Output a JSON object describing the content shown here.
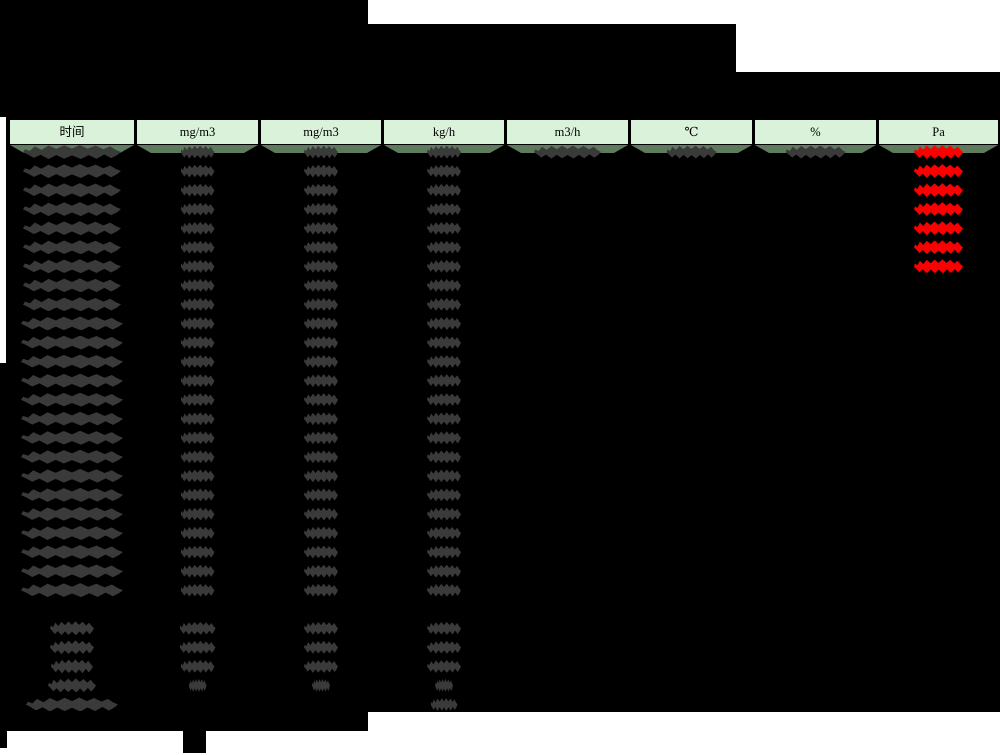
{
  "colors": {
    "canvas_bg": "#ffffff",
    "page_bg": "#000000",
    "header_cell_bg": "#d9f2d9",
    "header_strip_bg": "#5e7b5e",
    "header_text": "#000000",
    "blob": "#3a3a3a",
    "blob_red": "#fb0000"
  },
  "header": {
    "labels": [
      "时间",
      "mg/m3",
      "mg/m3",
      "kg/h",
      "m3/h",
      "℃",
      "%",
      "Pa"
    ]
  },
  "body": {
    "note_visible_content": "数据单元格文字不可辨认（深灰色模糊块）；Pa列前7行数值为红色；其余区域为黑色页面。",
    "rows": [
      {
        "grid": 1,
        "c1": 98,
        "c2": 34,
        "c3": 34,
        "c4": 34,
        "c5": 67,
        "c6": 50,
        "c7": 60,
        "c8": 49,
        "red": true
      },
      {
        "grid": 2,
        "c1": 98,
        "c2": 34,
        "c3": 34,
        "c4": 34,
        "c8": 49,
        "red": true
      },
      {
        "grid": 3,
        "c1": 98,
        "c2": 34,
        "c3": 34,
        "c4": 34,
        "c8": 49,
        "red": true
      },
      {
        "grid": 4,
        "c1": 98,
        "c2": 34,
        "c3": 34,
        "c4": 34,
        "c8": 49,
        "red": true
      },
      {
        "grid": 5,
        "c1": 98,
        "c2": 34,
        "c3": 34,
        "c4": 34,
        "c8": 49,
        "red": true
      },
      {
        "grid": 6,
        "c1": 98,
        "c2": 34,
        "c3": 34,
        "c4": 34,
        "c8": 49,
        "red": true
      },
      {
        "grid": 7,
        "c1": 98,
        "c2": 34,
        "c3": 34,
        "c4": 34,
        "c8": 49,
        "red": true
      },
      {
        "grid": 8,
        "c1": 98,
        "c2": 34,
        "c3": 34,
        "c4": 34
      },
      {
        "grid": 9,
        "c1": 98,
        "c2": 34,
        "c3": 34,
        "c4": 34
      },
      {
        "grid": 10,
        "c1": 102,
        "c2": 34,
        "c3": 34,
        "c4": 34
      },
      {
        "grid": 11,
        "c1": 102,
        "c2": 34,
        "c3": 34,
        "c4": 34
      },
      {
        "grid": 12,
        "c1": 102,
        "c2": 34,
        "c3": 34,
        "c4": 34
      },
      {
        "grid": 13,
        "c1": 102,
        "c2": 34,
        "c3": 34,
        "c4": 34
      },
      {
        "grid": 14,
        "c1": 102,
        "c2": 34,
        "c3": 34,
        "c4": 34
      },
      {
        "grid": 15,
        "c1": 102,
        "c2": 34,
        "c3": 34,
        "c4": 34
      },
      {
        "grid": 16,
        "c1": 102,
        "c2": 34,
        "c3": 34,
        "c4": 34
      },
      {
        "grid": 17,
        "c1": 102,
        "c2": 34,
        "c3": 34,
        "c4": 34
      },
      {
        "grid": 18,
        "c1": 102,
        "c2": 34,
        "c3": 34,
        "c4": 34
      },
      {
        "grid": 19,
        "c1": 102,
        "c2": 34,
        "c3": 34,
        "c4": 34
      },
      {
        "grid": 20,
        "c1": 102,
        "c2": 34,
        "c3": 34,
        "c4": 34
      },
      {
        "grid": 21,
        "c1": 102,
        "c2": 34,
        "c3": 34,
        "c4": 34
      },
      {
        "grid": 22,
        "c1": 102,
        "c2": 34,
        "c3": 34,
        "c4": 34
      },
      {
        "grid": 23,
        "c1": 102,
        "c2": 34,
        "c3": 34,
        "c4": 34
      },
      {
        "grid": 24,
        "c1": 102,
        "c2": 34,
        "c3": 34,
        "c4": 34
      },
      {
        "grid": 26,
        "c1": 44,
        "c2": 36,
        "c3": 34,
        "c4": 34
      },
      {
        "grid": 27,
        "c1": 44,
        "c2": 36,
        "c3": 34,
        "c4": 34
      },
      {
        "grid": 28,
        "c1": 42,
        "c2": 34,
        "c3": 34,
        "c4": 34
      },
      {
        "grid": 29,
        "c1": 48,
        "c2": 18,
        "c3": 18,
        "c4": 18
      },
      {
        "grid": 30,
        "c1": 92,
        "c4": 27
      }
    ]
  }
}
